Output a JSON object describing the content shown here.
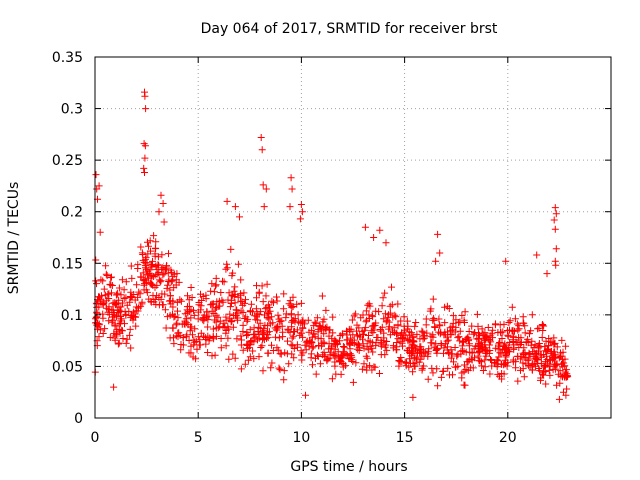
{
  "chart_data": {
    "type": "scatter",
    "title": "Day 064 of 2017, SRMTID for receiver brst",
    "xlabel": "GPS time / hours",
    "ylabel": "SRMTID / TECUs",
    "xlim": [
      0,
      25
    ],
    "ylim": [
      0,
      0.35
    ],
    "x_ticks": [
      0,
      5,
      10,
      15,
      20
    ],
    "x_tick_labels": [
      "0",
      "5",
      "10",
      "15",
      "20"
    ],
    "y_ticks": [
      0,
      0.05,
      0.1,
      0.15,
      0.2,
      0.25,
      0.3,
      0.35
    ],
    "y_tick_labels": [
      "0",
      "0.05",
      "0.1",
      "0.15",
      "0.2",
      "0.25",
      "0.3",
      "0.35"
    ],
    "grid": true,
    "marker": "+",
    "marker_color": "#ff0000",
    "x_end": 22.9,
    "series": [
      {
        "name": "SRMTID",
        "points": [
          [
            0.05,
            0.236
          ],
          [
            0.08,
            0.222
          ],
          [
            0.12,
            0.212
          ],
          [
            0.2,
            0.225
          ],
          [
            0.25,
            0.18
          ],
          [
            2.4,
            0.316
          ],
          [
            2.42,
            0.312
          ],
          [
            2.45,
            0.3
          ],
          [
            2.38,
            0.266
          ],
          [
            2.44,
            0.264
          ],
          [
            2.36,
            0.242
          ],
          [
            2.4,
            0.238
          ],
          [
            2.42,
            0.252
          ],
          [
            8.05,
            0.272
          ],
          [
            8.1,
            0.26
          ],
          [
            8.15,
            0.226
          ],
          [
            8.3,
            0.222
          ],
          [
            8.2,
            0.205
          ],
          [
            9.5,
            0.233
          ],
          [
            9.55,
            0.222
          ],
          [
            9.45,
            0.205
          ],
          [
            10.0,
            0.207
          ],
          [
            10.05,
            0.2
          ],
          [
            9.95,
            0.193
          ],
          [
            22.3,
            0.204
          ],
          [
            22.35,
            0.198
          ],
          [
            22.25,
            0.192
          ],
          [
            22.3,
            0.183
          ],
          [
            22.35,
            0.164
          ],
          [
            22.3,
            0.152
          ],
          [
            22.32,
            0.148
          ],
          [
            3.2,
            0.216
          ],
          [
            3.3,
            0.208
          ],
          [
            3.1,
            0.2
          ],
          [
            3.35,
            0.19
          ],
          [
            6.4,
            0.21
          ],
          [
            6.8,
            0.205
          ],
          [
            7.0,
            0.195
          ],
          [
            13.1,
            0.185
          ],
          [
            13.5,
            0.175
          ],
          [
            13.8,
            0.182
          ],
          [
            14.1,
            0.17
          ],
          [
            16.6,
            0.178
          ],
          [
            16.7,
            0.16
          ],
          [
            16.5,
            0.152
          ],
          [
            19.9,
            0.152
          ],
          [
            21.4,
            0.158
          ],
          [
            21.9,
            0.14
          ],
          [
            0.9,
            0.03
          ],
          [
            15.4,
            0.02
          ],
          [
            22.5,
            0.018
          ],
          [
            22.7,
            0.025
          ],
          [
            10.2,
            0.022
          ]
        ]
      }
    ],
    "density_envelope": {
      "x": [
        0,
        0.5,
        1,
        1.5,
        2,
        2.5,
        3,
        3.5,
        4,
        4.5,
        5,
        5.5,
        6,
        6.5,
        7,
        7.5,
        8,
        8.5,
        9,
        9.5,
        10,
        10.5,
        11,
        11.5,
        12,
        12.5,
        13,
        13.5,
        14,
        14.5,
        15,
        15.5,
        16,
        16.5,
        17,
        17.5,
        18,
        18.5,
        19,
        19.5,
        20,
        20.5,
        21,
        21.5,
        22,
        22.5,
        22.9
      ],
      "center": [
        0.1,
        0.11,
        0.1,
        0.105,
        0.11,
        0.14,
        0.13,
        0.12,
        0.1,
        0.09,
        0.09,
        0.095,
        0.1,
        0.11,
        0.1,
        0.08,
        0.095,
        0.09,
        0.08,
        0.085,
        0.08,
        0.07,
        0.08,
        0.07,
        0.065,
        0.07,
        0.075,
        0.08,
        0.09,
        0.085,
        0.07,
        0.065,
        0.07,
        0.075,
        0.075,
        0.07,
        0.065,
        0.075,
        0.07,
        0.065,
        0.07,
        0.07,
        0.065,
        0.065,
        0.06,
        0.05,
        0.045
      ],
      "spread": [
        0.045,
        0.035,
        0.035,
        0.04,
        0.04,
        0.045,
        0.045,
        0.045,
        0.04,
        0.035,
        0.035,
        0.035,
        0.04,
        0.045,
        0.045,
        0.035,
        0.04,
        0.04,
        0.04,
        0.04,
        0.035,
        0.03,
        0.03,
        0.03,
        0.025,
        0.03,
        0.035,
        0.035,
        0.04,
        0.035,
        0.03,
        0.03,
        0.035,
        0.035,
        0.035,
        0.03,
        0.03,
        0.03,
        0.03,
        0.03,
        0.03,
        0.035,
        0.03,
        0.03,
        0.03,
        0.025,
        0.02
      ],
      "count": 1500
    }
  }
}
